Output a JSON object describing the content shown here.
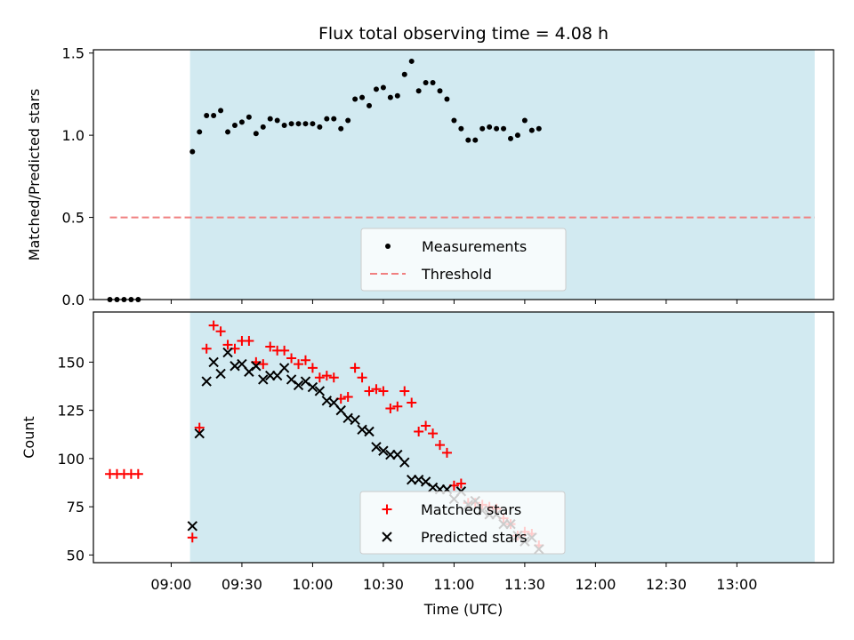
{
  "chart_data": {
    "title": "Flux total observing time = 4.08 h",
    "xlabel": "Time (UTC)",
    "x_ticks": [
      "09:00",
      "09:30",
      "10:00",
      "10:30",
      "11:00",
      "11:30",
      "12:00",
      "12:30",
      "13:00"
    ],
    "x_range": [
      "08:27",
      "13:41"
    ],
    "shaded_span": [
      "09:08",
      "13:33"
    ],
    "colors": {
      "shade": "#add8e6",
      "threshold": "#f08080",
      "matched": "#ff0000",
      "predicted": "#000000",
      "measurements": "#000000"
    },
    "panels": [
      {
        "type": "scatter",
        "ylabel": "Matched/Predicted stars",
        "ylim": [
          0,
          1.52
        ],
        "y_ticks": [
          "0.0",
          "0.5",
          "1.0",
          "1.5"
        ],
        "threshold": 0.5,
        "threshold_span": [
          "08:34",
          "13:33"
        ],
        "legend": {
          "placement": "lower-center",
          "entries": [
            "Measurements",
            "Threshold"
          ]
        },
        "series": [
          {
            "name": "Measurements",
            "marker": "dot",
            "points": [
              [
                "08:34",
                0.0
              ],
              [
                "08:37",
                0.0
              ],
              [
                "08:40",
                0.0
              ],
              [
                "08:43",
                0.0
              ],
              [
                "08:46",
                0.0
              ],
              [
                "09:09",
                0.9
              ],
              [
                "09:12",
                1.02
              ],
              [
                "09:15",
                1.12
              ],
              [
                "09:18",
                1.12
              ],
              [
                "09:21",
                1.15
              ],
              [
                "09:24",
                1.02
              ],
              [
                "09:27",
                1.06
              ],
              [
                "09:30",
                1.08
              ],
              [
                "09:33",
                1.11
              ],
              [
                "09:36",
                1.01
              ],
              [
                "09:39",
                1.05
              ],
              [
                "09:42",
                1.1
              ],
              [
                "09:45",
                1.09
              ],
              [
                "09:48",
                1.06
              ],
              [
                "09:51",
                1.07
              ],
              [
                "09:54",
                1.07
              ],
              [
                "09:57",
                1.07
              ],
              [
                "10:00",
                1.07
              ],
              [
                "10:03",
                1.05
              ],
              [
                "10:06",
                1.1
              ],
              [
                "10:09",
                1.1
              ],
              [
                "10:12",
                1.04
              ],
              [
                "10:15",
                1.09
              ],
              [
                "10:18",
                1.22
              ],
              [
                "10:21",
                1.23
              ],
              [
                "10:24",
                1.18
              ],
              [
                "10:27",
                1.28
              ],
              [
                "10:30",
                1.29
              ],
              [
                "10:33",
                1.23
              ],
              [
                "10:36",
                1.24
              ],
              [
                "10:39",
                1.37
              ],
              [
                "10:42",
                1.45
              ],
              [
                "10:45",
                1.27
              ],
              [
                "10:48",
                1.32
              ],
              [
                "10:51",
                1.32
              ],
              [
                "10:54",
                1.27
              ],
              [
                "10:57",
                1.22
              ],
              [
                "11:00",
                1.09
              ],
              [
                "11:03",
                1.04
              ],
              [
                "11:06",
                0.97
              ],
              [
                "11:09",
                0.97
              ],
              [
                "11:12",
                1.04
              ],
              [
                "11:15",
                1.05
              ],
              [
                "11:18",
                1.04
              ],
              [
                "11:21",
                1.04
              ],
              [
                "11:24",
                0.98
              ],
              [
                "11:27",
                1.0
              ],
              [
                "11:30",
                1.09
              ],
              [
                "11:33",
                1.03
              ],
              [
                "11:36",
                1.04
              ]
            ]
          }
        ]
      },
      {
        "type": "scatter",
        "ylabel": "Count",
        "ylim": [
          46,
          176
        ],
        "y_ticks": [
          "50",
          "75",
          "100",
          "125",
          "150"
        ],
        "legend": {
          "placement": "lower-center",
          "entries": [
            "Matched stars",
            "Predicted stars"
          ]
        },
        "series": [
          {
            "name": "Matched stars",
            "marker": "plus",
            "points": [
              [
                "08:34",
                92
              ],
              [
                "08:37",
                92
              ],
              [
                "08:40",
                92
              ],
              [
                "08:43",
                92
              ],
              [
                "08:46",
                92
              ],
              [
                "09:09",
                59
              ],
              [
                "09:12",
                116
              ],
              [
                "09:15",
                157
              ],
              [
                "09:18",
                169
              ],
              [
                "09:21",
                166
              ],
              [
                "09:24",
                159
              ],
              [
                "09:27",
                157
              ],
              [
                "09:30",
                161
              ],
              [
                "09:33",
                161
              ],
              [
                "09:36",
                150
              ],
              [
                "09:39",
                149
              ],
              [
                "09:42",
                158
              ],
              [
                "09:45",
                156
              ],
              [
                "09:48",
                156
              ],
              [
                "09:51",
                152
              ],
              [
                "09:54",
                149
              ],
              [
                "09:57",
                151
              ],
              [
                "10:00",
                147
              ],
              [
                "10:03",
                142
              ],
              [
                "10:06",
                143
              ],
              [
                "10:09",
                142
              ],
              [
                "10:12",
                131
              ],
              [
                "10:15",
                132
              ],
              [
                "10:18",
                147
              ],
              [
                "10:21",
                142
              ],
              [
                "10:24",
                135
              ],
              [
                "10:27",
                136
              ],
              [
                "10:30",
                135
              ],
              [
                "10:33",
                126
              ],
              [
                "10:36",
                127
              ],
              [
                "10:39",
                135
              ],
              [
                "10:42",
                129
              ],
              [
                "10:45",
                114
              ],
              [
                "10:48",
                117
              ],
              [
                "10:51",
                113
              ],
              [
                "10:54",
                107
              ],
              [
                "10:57",
                103
              ],
              [
                "11:00",
                86
              ],
              [
                "11:03",
                87
              ],
              [
                "11:06",
                77
              ],
              [
                "11:09",
                77
              ],
              [
                "11:12",
                76
              ],
              [
                "11:15",
                75
              ],
              [
                "11:18",
                74
              ],
              [
                "11:21",
                69
              ],
              [
                "11:24",
                66
              ],
              [
                "11:27",
                60
              ],
              [
                "11:30",
                62
              ],
              [
                "11:33",
                61
              ],
              [
                "11:36",
                55
              ]
            ]
          },
          {
            "name": "Predicted stars",
            "marker": "x",
            "points": [
              [
                "09:09",
                65
              ],
              [
                "09:12",
                113
              ],
              [
                "09:15",
                140
              ],
              [
                "09:18",
                150
              ],
              [
                "09:21",
                144
              ],
              [
                "09:24",
                155
              ],
              [
                "09:27",
                148
              ],
              [
                "09:30",
                149
              ],
              [
                "09:33",
                145
              ],
              [
                "09:36",
                148
              ],
              [
                "09:39",
                141
              ],
              [
                "09:42",
                143
              ],
              [
                "09:45",
                143
              ],
              [
                "09:48",
                147
              ],
              [
                "09:51",
                141
              ],
              [
                "09:54",
                138
              ],
              [
                "09:57",
                140
              ],
              [
                "10:00",
                137
              ],
              [
                "10:03",
                135
              ],
              [
                "10:06",
                130
              ],
              [
                "10:09",
                129
              ],
              [
                "10:12",
                125
              ],
              [
                "10:15",
                121
              ],
              [
                "10:18",
                120
              ],
              [
                "10:21",
                115
              ],
              [
                "10:24",
                114
              ],
              [
                "10:27",
                106
              ],
              [
                "10:30",
                104
              ],
              [
                "10:33",
                102
              ],
              [
                "10:36",
                102
              ],
              [
                "10:39",
                98
              ],
              [
                "10:42",
                89
              ],
              [
                "10:45",
                89
              ],
              [
                "10:48",
                88
              ],
              [
                "10:51",
                85
              ],
              [
                "10:54",
                84
              ],
              [
                "10:57",
                84
              ],
              [
                "11:00",
                79
              ],
              [
                "11:03",
                83
              ],
              [
                "11:06",
                76
              ],
              [
                "11:09",
                78
              ],
              [
                "11:12",
                73
              ],
              [
                "11:15",
                71
              ],
              [
                "11:18",
                71
              ],
              [
                "11:21",
                66
              ],
              [
                "11:24",
                66
              ],
              [
                "11:27",
                60
              ],
              [
                "11:30",
                57
              ],
              [
                "11:33",
                59
              ],
              [
                "11:36",
                53
              ]
            ]
          }
        ]
      }
    ]
  }
}
